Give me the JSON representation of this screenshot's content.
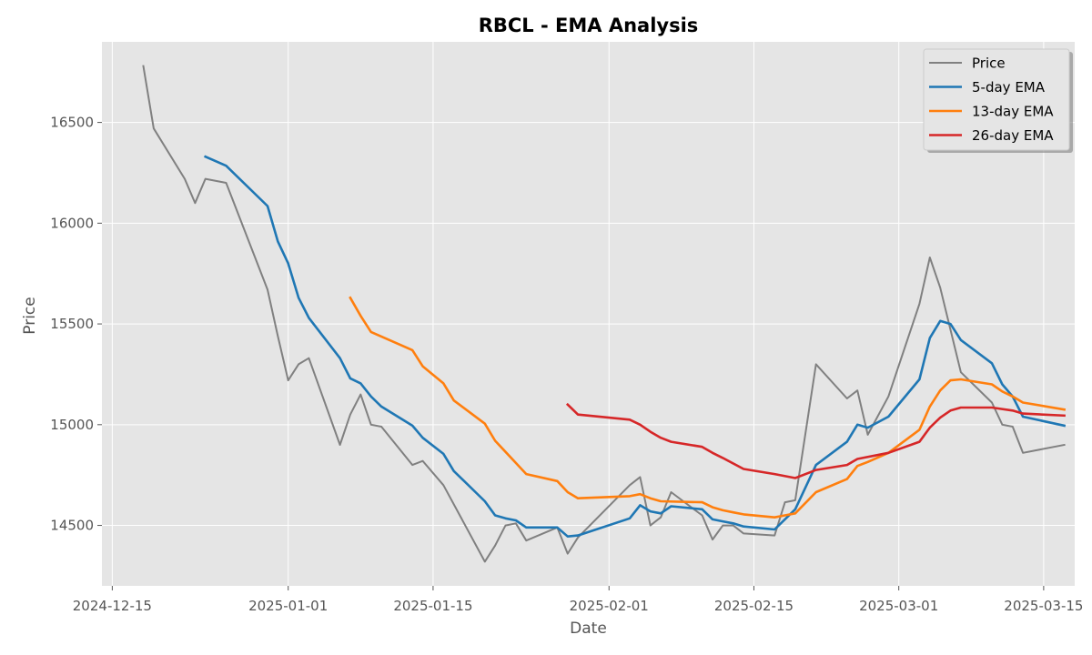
{
  "chart_data": {
    "type": "line",
    "title": "RBCL - EMA Analysis",
    "xlabel": "Date",
    "ylabel": "Price",
    "ylim": [
      14200,
      16900
    ],
    "xlim": [
      "2024-12-14",
      "2025-03-18"
    ],
    "x_ticks": [
      "2024-12-15",
      "2025-01-01",
      "2025-01-15",
      "2025-02-01",
      "2025-02-15",
      "2025-03-01",
      "2025-03-15"
    ],
    "y_ticks": [
      14500,
      15000,
      15500,
      16000,
      16500
    ],
    "grid": true,
    "legend_position": "top-right",
    "series": [
      {
        "name": "Price",
        "color": "#808080",
        "points": [
          [
            "2024-12-18",
            16780
          ],
          [
            "2024-12-19",
            16470
          ],
          [
            "2024-12-22",
            16220
          ],
          [
            "2024-12-23",
            16100
          ],
          [
            "2024-12-24",
            16220
          ],
          [
            "2024-12-26",
            16200
          ],
          [
            "2024-12-30",
            15670
          ],
          [
            "2024-12-31",
            15440
          ],
          [
            "2025-01-01",
            15220
          ],
          [
            "2025-01-02",
            15300
          ],
          [
            "2025-01-03",
            15330
          ],
          [
            "2025-01-06",
            14900
          ],
          [
            "2025-01-07",
            15050
          ],
          [
            "2025-01-08",
            15150
          ],
          [
            "2025-01-09",
            15000
          ],
          [
            "2025-01-10",
            14990
          ],
          [
            "2025-01-13",
            14800
          ],
          [
            "2025-01-14",
            14820
          ],
          [
            "2025-01-16",
            14700
          ],
          [
            "2025-01-20",
            14320
          ],
          [
            "2025-01-21",
            14400
          ],
          [
            "2025-01-22",
            14500
          ],
          [
            "2025-01-23",
            14510
          ],
          [
            "2025-01-24",
            14425
          ],
          [
            "2025-01-27",
            14490
          ],
          [
            "2025-01-28",
            14360
          ],
          [
            "2025-01-29",
            14440
          ],
          [
            "2025-02-03",
            14700
          ],
          [
            "2025-02-04",
            14740
          ],
          [
            "2025-02-05",
            14500
          ],
          [
            "2025-02-06",
            14540
          ],
          [
            "2025-02-07",
            14665
          ],
          [
            "2025-02-10",
            14550
          ],
          [
            "2025-02-11",
            14430
          ],
          [
            "2025-02-12",
            14500
          ],
          [
            "2025-02-13",
            14500
          ],
          [
            "2025-02-14",
            14460
          ],
          [
            "2025-02-17",
            14450
          ],
          [
            "2025-02-18",
            14615
          ],
          [
            "2025-02-19",
            14625
          ],
          [
            "2025-02-21",
            15300
          ],
          [
            "2025-02-24",
            15130
          ],
          [
            "2025-02-25",
            15170
          ],
          [
            "2025-02-26",
            14950
          ],
          [
            "2025-02-28",
            15140
          ],
          [
            "2025-03-03",
            15600
          ],
          [
            "2025-03-04",
            15830
          ],
          [
            "2025-03-05",
            15680
          ],
          [
            "2025-03-07",
            15260
          ],
          [
            "2025-03-10",
            15110
          ],
          [
            "2025-03-11",
            15000
          ],
          [
            "2025-03-12",
            14990
          ],
          [
            "2025-03-13",
            14860
          ],
          [
            "2025-03-17",
            14900
          ]
        ]
      },
      {
        "name": "5-day EMA",
        "color": "#1f77b4",
        "points": [
          [
            "2024-12-24",
            16330
          ],
          [
            "2024-12-26",
            16285
          ],
          [
            "2024-12-30",
            16085
          ],
          [
            "2024-12-31",
            15910
          ],
          [
            "2025-01-01",
            15800
          ],
          [
            "2025-01-02",
            15630
          ],
          [
            "2025-01-03",
            15530
          ],
          [
            "2025-01-06",
            15330
          ],
          [
            "2025-01-07",
            15230
          ],
          [
            "2025-01-08",
            15205
          ],
          [
            "2025-01-09",
            15140
          ],
          [
            "2025-01-10",
            15090
          ],
          [
            "2025-01-13",
            14995
          ],
          [
            "2025-01-14",
            14935
          ],
          [
            "2025-01-16",
            14855
          ],
          [
            "2025-01-17",
            14770
          ],
          [
            "2025-01-20",
            14620
          ],
          [
            "2025-01-21",
            14550
          ],
          [
            "2025-01-22",
            14535
          ],
          [
            "2025-01-23",
            14525
          ],
          [
            "2025-01-24",
            14490
          ],
          [
            "2025-01-27",
            14490
          ],
          [
            "2025-01-28",
            14445
          ],
          [
            "2025-01-29",
            14450
          ],
          [
            "2025-02-03",
            14535
          ],
          [
            "2025-02-04",
            14600
          ],
          [
            "2025-02-05",
            14570
          ],
          [
            "2025-02-06",
            14560
          ],
          [
            "2025-02-07",
            14595
          ],
          [
            "2025-02-10",
            14580
          ],
          [
            "2025-02-11",
            14530
          ],
          [
            "2025-02-12",
            14520
          ],
          [
            "2025-02-13",
            14510
          ],
          [
            "2025-02-14",
            14495
          ],
          [
            "2025-02-17",
            14480
          ],
          [
            "2025-02-19",
            14580
          ],
          [
            "2025-02-21",
            14800
          ],
          [
            "2025-02-24",
            14915
          ],
          [
            "2025-02-25",
            15000
          ],
          [
            "2025-02-26",
            14985
          ],
          [
            "2025-02-28",
            15040
          ],
          [
            "2025-03-03",
            15225
          ],
          [
            "2025-03-04",
            15430
          ],
          [
            "2025-03-05",
            15515
          ],
          [
            "2025-03-06",
            15500
          ],
          [
            "2025-03-07",
            15420
          ],
          [
            "2025-03-10",
            15305
          ],
          [
            "2025-03-11",
            15200
          ],
          [
            "2025-03-12",
            15140
          ],
          [
            "2025-03-13",
            15040
          ],
          [
            "2025-03-17",
            14995
          ]
        ]
      },
      {
        "name": "13-day EMA",
        "color": "#ff7f0e",
        "points": [
          [
            "2025-01-07",
            15630
          ],
          [
            "2025-01-08",
            15540
          ],
          [
            "2025-01-09",
            15460
          ],
          [
            "2025-01-13",
            15370
          ],
          [
            "2025-01-14",
            15290
          ],
          [
            "2025-01-16",
            15205
          ],
          [
            "2025-01-17",
            15120
          ],
          [
            "2025-01-20",
            15005
          ],
          [
            "2025-01-21",
            14920
          ],
          [
            "2025-01-22",
            14865
          ],
          [
            "2025-01-24",
            14755
          ],
          [
            "2025-01-27",
            14720
          ],
          [
            "2025-01-28",
            14665
          ],
          [
            "2025-01-29",
            14635
          ],
          [
            "2025-02-03",
            14645
          ],
          [
            "2025-02-04",
            14655
          ],
          [
            "2025-02-05",
            14635
          ],
          [
            "2025-02-06",
            14620
          ],
          [
            "2025-02-10",
            14615
          ],
          [
            "2025-02-11",
            14590
          ],
          [
            "2025-02-12",
            14575
          ],
          [
            "2025-02-13",
            14565
          ],
          [
            "2025-02-14",
            14555
          ],
          [
            "2025-02-17",
            14540
          ],
          [
            "2025-02-18",
            14550
          ],
          [
            "2025-02-19",
            14560
          ],
          [
            "2025-02-21",
            14665
          ],
          [
            "2025-02-24",
            14730
          ],
          [
            "2025-02-25",
            14795
          ],
          [
            "2025-02-26",
            14815
          ],
          [
            "2025-02-28",
            14860
          ],
          [
            "2025-03-03",
            14975
          ],
          [
            "2025-03-04",
            15090
          ],
          [
            "2025-03-05",
            15170
          ],
          [
            "2025-03-06",
            15220
          ],
          [
            "2025-03-07",
            15225
          ],
          [
            "2025-03-10",
            15200
          ],
          [
            "2025-03-11",
            15165
          ],
          [
            "2025-03-12",
            15140
          ],
          [
            "2025-03-13",
            15110
          ],
          [
            "2025-03-17",
            15075
          ]
        ]
      },
      {
        "name": "26-day EMA",
        "color": "#d62728",
        "points": [
          [
            "2025-01-28",
            15100
          ],
          [
            "2025-01-29",
            15050
          ],
          [
            "2025-02-03",
            15025
          ],
          [
            "2025-02-04",
            15000
          ],
          [
            "2025-02-05",
            14965
          ],
          [
            "2025-02-06",
            14935
          ],
          [
            "2025-02-07",
            14915
          ],
          [
            "2025-02-10",
            14890
          ],
          [
            "2025-02-11",
            14860
          ],
          [
            "2025-02-12",
            14835
          ],
          [
            "2025-02-14",
            14780
          ],
          [
            "2025-02-17",
            14755
          ],
          [
            "2025-02-19",
            14735
          ],
          [
            "2025-02-21",
            14775
          ],
          [
            "2025-02-24",
            14800
          ],
          [
            "2025-02-25",
            14830
          ],
          [
            "2025-02-28",
            14860
          ],
          [
            "2025-03-03",
            14915
          ],
          [
            "2025-03-04",
            14985
          ],
          [
            "2025-03-05",
            15035
          ],
          [
            "2025-03-06",
            15070
          ],
          [
            "2025-03-07",
            15085
          ],
          [
            "2025-03-10",
            15085
          ],
          [
            "2025-03-12",
            15070
          ],
          [
            "2025-03-13",
            15055
          ],
          [
            "2025-03-17",
            15045
          ]
        ]
      }
    ]
  }
}
